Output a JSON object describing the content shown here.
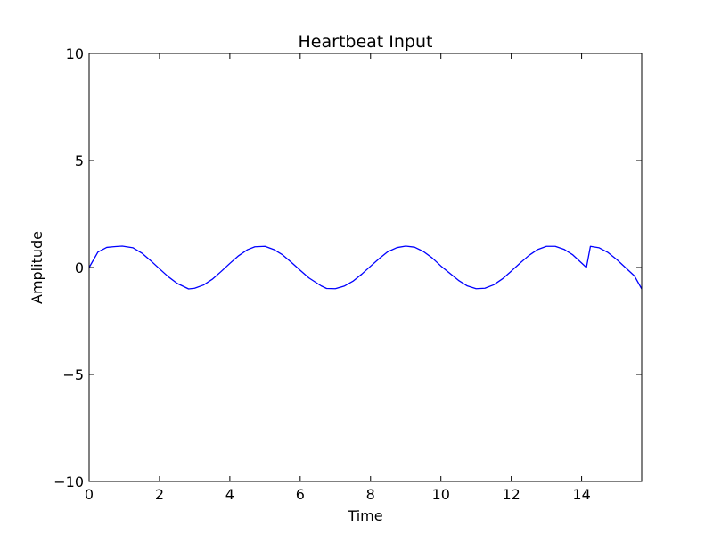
{
  "chart_data": {
    "type": "line",
    "title": "Heartbeat Input",
    "xlabel": "Time",
    "ylabel": "Amplitude",
    "xlim": [
      0,
      15.708
    ],
    "ylim": [
      -10,
      10
    ],
    "xticks": [
      0,
      2,
      4,
      6,
      8,
      10,
      12,
      14
    ],
    "xtick_labels": [
      "0",
      "2",
      "4",
      "6",
      "8",
      "10",
      "12",
      "14"
    ],
    "yticks": [
      -10,
      -5,
      0,
      5,
      10
    ],
    "ytick_labels": [
      "−10",
      "−5",
      "0",
      "5",
      "10"
    ],
    "grid": false,
    "series": [
      {
        "color": "#0000ff",
        "x": [
          0,
          0.25,
          0.5,
          0.75,
          0.942,
          1.25,
          1.5,
          1.75,
          2.0,
          2.25,
          2.5,
          2.827,
          3.0,
          3.25,
          3.5,
          3.75,
          4.0,
          4.25,
          4.5,
          4.712,
          5.0,
          5.25,
          5.5,
          5.75,
          6.0,
          6.25,
          6.597,
          6.75,
          7.0,
          7.25,
          7.5,
          7.75,
          8.0,
          8.25,
          8.482,
          8.75,
          9.0,
          9.25,
          9.5,
          9.75,
          10.0,
          10.367,
          10.5,
          10.75,
          11.0,
          11.25,
          11.5,
          11.75,
          12.0,
          12.252,
          12.5,
          12.75,
          13.0,
          13.25,
          13.5,
          13.75,
          14.137,
          14.25,
          14.5,
          14.75,
          15.0,
          15.25,
          15.5,
          15.708
        ],
        "y": [
          0,
          0.72,
          0.94,
          0.98,
          1.0,
          0.92,
          0.67,
          0.32,
          -0.06,
          -0.43,
          -0.74,
          -1.0,
          -0.97,
          -0.82,
          -0.55,
          -0.19,
          0.19,
          0.55,
          0.83,
          0.97,
          0.99,
          0.84,
          0.59,
          0.24,
          -0.13,
          -0.49,
          -0.86,
          -0.98,
          -0.99,
          -0.87,
          -0.64,
          -0.31,
          0.06,
          0.42,
          0.73,
          0.93,
          1.0,
          0.95,
          0.75,
          0.45,
          0.07,
          -0.42,
          -0.6,
          -0.86,
          -0.99,
          -0.97,
          -0.81,
          -0.53,
          -0.17,
          0.21,
          0.56,
          0.84,
          0.99,
          0.99,
          0.85,
          0.59,
          0.0,
          0.99,
          0.92,
          0.7,
          0.37,
          -0.01,
          -0.39,
          -1.0
        ]
      }
    ]
  }
}
